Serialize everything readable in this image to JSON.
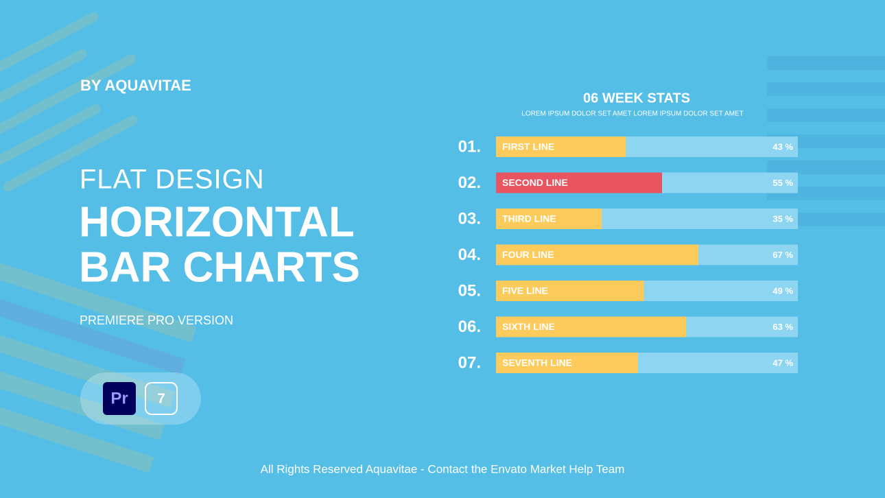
{
  "header": {
    "byline": "BY AQUAVITAE",
    "kicker": "FLAT DESIGN",
    "title_lines": [
      "HORIZONTAL",
      "BAR CHARTS"
    ],
    "version": "PREMIERE PRO VERSION",
    "badges": [
      "Pr",
      "7"
    ]
  },
  "chart_data": {
    "type": "bar",
    "orientation": "horizontal",
    "title": "06  WEEK STATS",
    "subtitle": "LOREM IPSUM DOLOR SET AMET LOREM IPSUM DOLOR SET AMET",
    "indices": [
      "01.",
      "02.",
      "03.",
      "04.",
      "05.",
      "06.",
      "07."
    ],
    "categories": [
      "FIRST LINE",
      "SECOND LINE",
      "THIRD LINE",
      "FOUR LINE",
      "FIVE LINE",
      "SIXTH LINE",
      "SEVENTH LINE"
    ],
    "values": [
      43,
      55,
      35,
      67,
      49,
      63,
      47
    ],
    "value_labels": [
      "43 %",
      "55 %",
      "35 %",
      "67 %",
      "49 %",
      "63 %",
      "47 %"
    ],
    "colors": [
      "#fdcb5c",
      "#e8545f",
      "#fdcb5c",
      "#fdcb5c",
      "#fdcb5c",
      "#fdcb5c",
      "#fdcb5c"
    ],
    "track_color": "#8ed5f1",
    "xlim": [
      0,
      100
    ]
  },
  "footer": "All Rights Reserved Aquavitae - Contact the Envato Market Help Team"
}
